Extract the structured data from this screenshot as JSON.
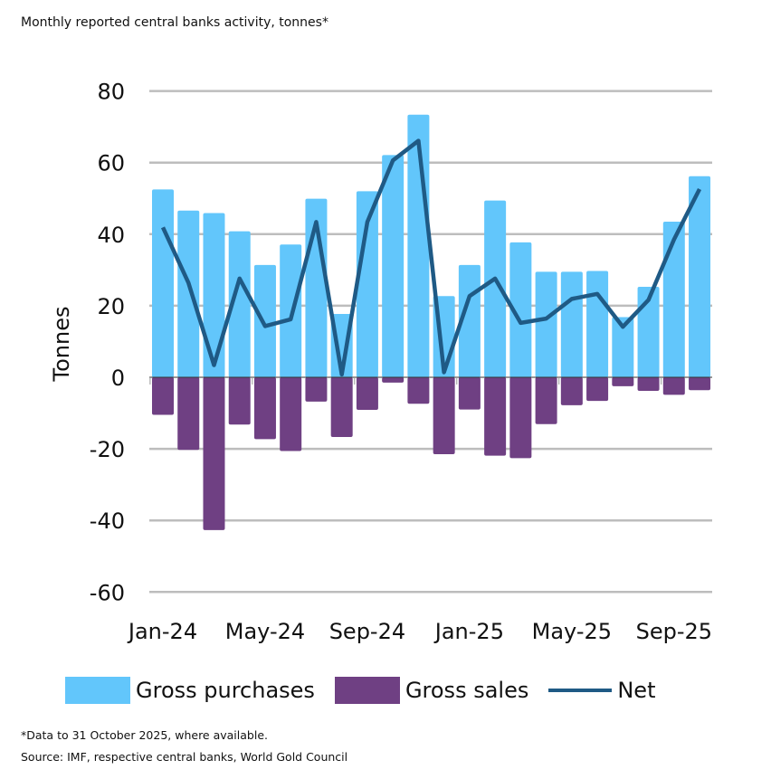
{
  "title": "Monthly reported central banks activity, tonnes*",
  "footnote": "*Data to 31 October 2025, where available.",
  "source": "Source: IMF, respective central banks, World Gold Council",
  "chart_data": {
    "type": "bar",
    "ylabel": "Tonnes",
    "ylim": [
      -60,
      80
    ],
    "yticks": [
      80,
      60,
      40,
      20,
      0,
      -20,
      -40,
      -60
    ],
    "grid": true,
    "legend_position": "bottom",
    "categories": [
      "Jan-24",
      "Feb-24",
      "Mar-24",
      "Apr-24",
      "May-24",
      "Jun-24",
      "Jul-24",
      "Aug-24",
      "Sep-24",
      "Oct-24",
      "Nov-24",
      "Dec-24",
      "Jan-25",
      "Feb-25",
      "Mar-25",
      "Apr-25",
      "May-25",
      "Jun-25",
      "Jul-25",
      "Aug-25",
      "Sep-25",
      "Oct-25"
    ],
    "xtick_labels": [
      "Jan-24",
      "May-24",
      "Sep-24",
      "Jan-25",
      "May-25",
      "Sep-25"
    ],
    "series": [
      {
        "name": "Gross purchases",
        "type": "bar",
        "color": "#62c6fb",
        "values": [
          52.5,
          46.6,
          45.9,
          40.8,
          31.4,
          37.1,
          49.9,
          17.7,
          52.0,
          62.1,
          73.4,
          22.7,
          31.4,
          49.4,
          37.7,
          29.5,
          29.5,
          29.7,
          16.8,
          25.3,
          43.5,
          56.2
        ]
      },
      {
        "name": "Gross sales",
        "type": "bar",
        "color": "#6f4083",
        "values": [
          -10.5,
          -20.3,
          -42.7,
          -13.2,
          -17.3,
          -20.6,
          -6.8,
          -16.7,
          -9.1,
          -1.5,
          -7.4,
          -21.5,
          -9.0,
          -21.9,
          -22.6,
          -13.1,
          -7.8,
          -6.6,
          -2.5,
          -3.8,
          -4.9,
          -3.6
        ]
      },
      {
        "name": "Net",
        "type": "line",
        "color": "#1f5a85",
        "values": [
          41.9,
          26.4,
          3.4,
          27.6,
          14.3,
          16.2,
          43.4,
          0.8,
          43.4,
          60.6,
          66.1,
          1.4,
          22.7,
          27.6,
          15.2,
          16.4,
          21.9,
          23.3,
          14.1,
          21.6,
          38.5,
          52.6
        ]
      }
    ]
  }
}
